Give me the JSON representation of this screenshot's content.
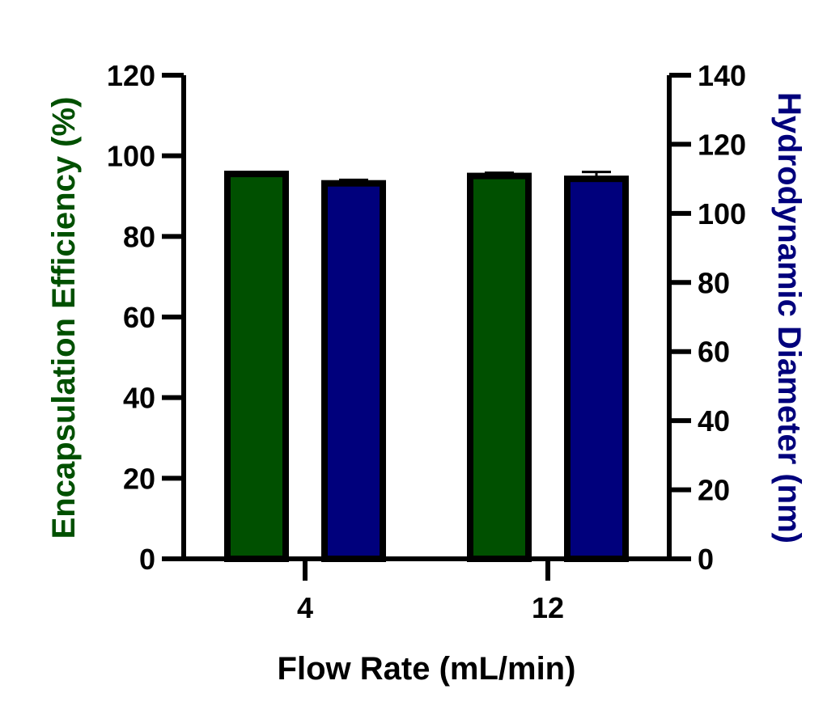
{
  "chart_data": {
    "type": "bar",
    "title": "",
    "xlabel": "Flow Rate (mL/min)",
    "ylabel_left": "Encapsulation Efficiency  (%)",
    "ylabel_right": "Hydrodynamic  Diameter (nm)",
    "categories": [
      "4",
      "12"
    ],
    "y_left": {
      "lim": [
        0,
        120
      ],
      "ticks": [
        "0",
        "20",
        "40",
        "60",
        "80",
        "100",
        "120"
      ]
    },
    "y_right": {
      "lim": [
        0,
        140
      ],
      "ticks": [
        "0",
        "20",
        "40",
        "60",
        "80",
        "100",
        "120",
        "140"
      ]
    },
    "series": [
      {
        "axis": "left",
        "color": "#005000",
        "values": [
          95.5,
          95.0
        ],
        "errors": [
          0,
          0.8
        ]
      },
      {
        "axis": "right",
        "color": "#00007c",
        "values": [
          108.7,
          110.0
        ],
        "errors": [
          1.0,
          2.0
        ]
      }
    ],
    "colors": {
      "left_label": "#005000",
      "right_label": "#00007c",
      "axis": "#000000"
    }
  }
}
